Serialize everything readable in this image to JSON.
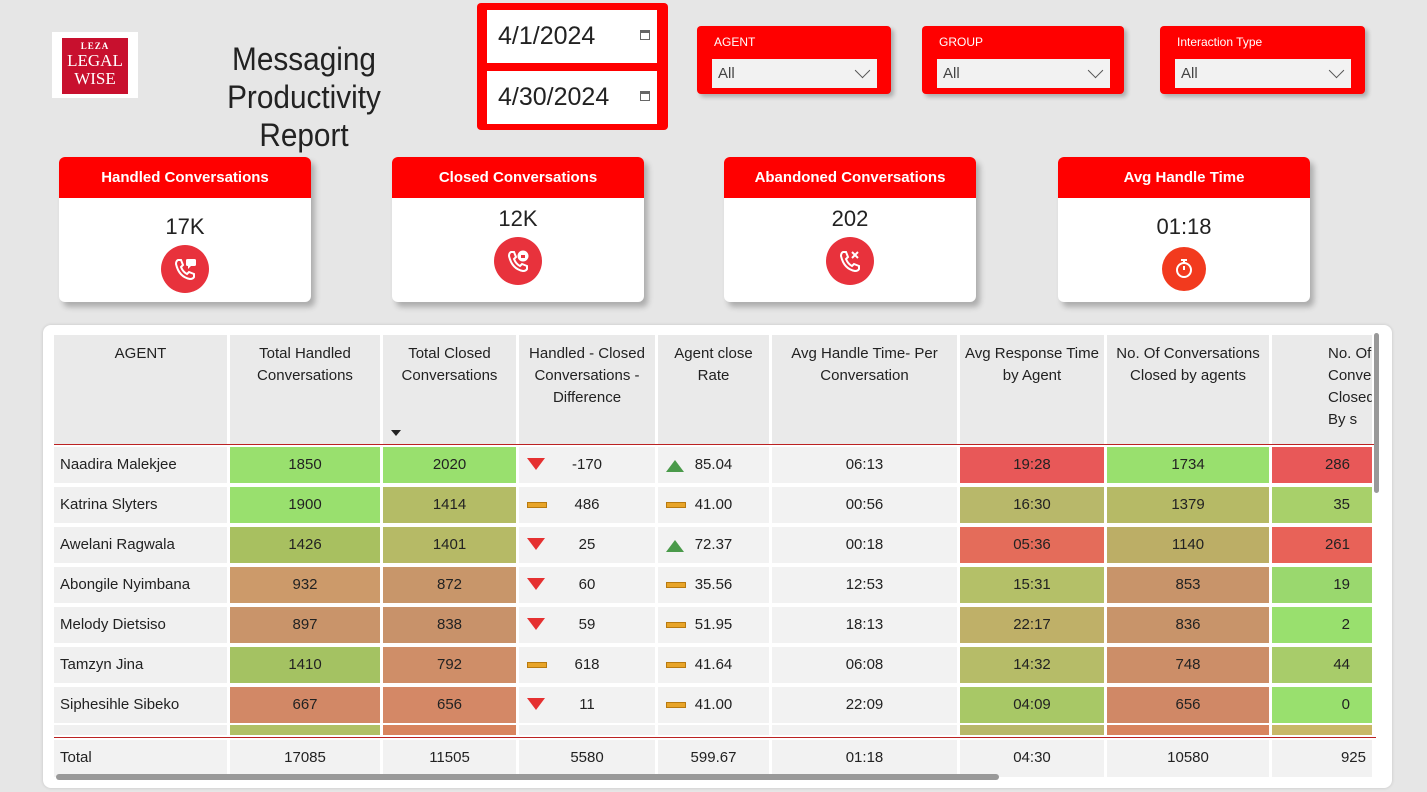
{
  "logo": {
    "line1": "LEZA",
    "line2": "LEGAL",
    "line3": "WISE"
  },
  "title": "Messaging Productivity Report",
  "date_range": {
    "start": "4/1/2024",
    "end": "4/30/2024"
  },
  "slicers": [
    {
      "label": "AGENT",
      "value": "All"
    },
    {
      "label": "GROUP",
      "value": "All"
    },
    {
      "label": "Interaction Type",
      "value": "All"
    }
  ],
  "kpis": [
    {
      "label": "Handled Conversations",
      "value": "17K",
      "icon": "phone-chat-icon"
    },
    {
      "label": "Closed Conversations",
      "value": "12K",
      "icon": "phone-lock-icon"
    },
    {
      "label": "Abandoned  Conversations",
      "value": "202",
      "icon": "phone-cancel-icon"
    },
    {
      "label": "Avg Handle Time",
      "value": "01:18",
      "icon": "stopwatch-icon"
    }
  ],
  "table": {
    "columns": [
      "AGENT",
      "Total Handled Conversations",
      "Total Closed Conversations",
      "Handled - Closed Conversations - Difference",
      "Agent close Rate",
      "Avg Handle Time- Per Conversation",
      "Avg Response Time by Agent",
      "No. Of Conversations Closed by agents",
      "No. Of Conversat Closed By s"
    ],
    "rows": [
      {
        "agent": "Naadira Malekjee",
        "handled": "1850",
        "closed": "2020",
        "diff": "-170",
        "diff_ind": "down",
        "rate": "85.04",
        "rate_ind": "up",
        "aht": "06:13",
        "art": "19:28",
        "by_agents": "1734",
        "by_s": "286"
      },
      {
        "agent": "Katrina Slyters",
        "handled": "1900",
        "closed": "1414",
        "diff": "486",
        "diff_ind": "flat",
        "rate": "41.00",
        "rate_ind": "flat",
        "aht": "00:56",
        "art": "16:30",
        "by_agents": "1379",
        "by_s": "35"
      },
      {
        "agent": "Awelani Ragwala",
        "handled": "1426",
        "closed": "1401",
        "diff": "25",
        "diff_ind": "down",
        "rate": "72.37",
        "rate_ind": "up",
        "aht": "00:18",
        "art": "05:36",
        "by_agents": "1140",
        "by_s": "261"
      },
      {
        "agent": "Abongile Nyimbana",
        "handled": "932",
        "closed": "872",
        "diff": "60",
        "diff_ind": "down",
        "rate": "35.56",
        "rate_ind": "flat",
        "aht": "12:53",
        "art": "15:31",
        "by_agents": "853",
        "by_s": "19"
      },
      {
        "agent": "Melody Dietsiso",
        "handled": "897",
        "closed": "838",
        "diff": "59",
        "diff_ind": "down",
        "rate": "51.95",
        "rate_ind": "flat",
        "aht": "18:13",
        "art": "22:17",
        "by_agents": "836",
        "by_s": "2"
      },
      {
        "agent": "Tamzyn Jina",
        "handled": "1410",
        "closed": "792",
        "diff": "618",
        "diff_ind": "flat",
        "rate": "41.64",
        "rate_ind": "flat",
        "aht": "06:08",
        "art": "14:32",
        "by_agents": "748",
        "by_s": "44"
      },
      {
        "agent": "Siphesihle Sibeko",
        "handled": "667",
        "closed": "656",
        "diff": "11",
        "diff_ind": "down",
        "rate": "41.00",
        "rate_ind": "flat",
        "aht": "22:09",
        "art": "04:09",
        "by_agents": "656",
        "by_s": "0"
      }
    ],
    "colors": {
      "handled": [
        "#99e06e",
        "#99e06e",
        "#a8c060",
        "#cc9a6a",
        "#c9946a",
        "#a4c262",
        "#d28866"
      ],
      "closed": [
        "#99e06e",
        "#b4bc66",
        "#b6ba66",
        "#c8966a",
        "#c8926a",
        "#cf8e68",
        "#d48866"
      ],
      "art": [
        "#e85858",
        "#b8b86a",
        "#e46c5a",
        "#b4c068",
        "#bfb068",
        "#b6bc68",
        "#a8c866"
      ],
      "by_agents": [
        "#99e06e",
        "#b6ba66",
        "#bcae66",
        "#c8946a",
        "#c8946a",
        "#cc8e68",
        "#d08866"
      ],
      "by_s": [
        "#e85858",
        "#a8d06a",
        "#e86258",
        "#9ad86e",
        "#99e06e",
        "#a8cc6a",
        "#99e06e"
      ]
    },
    "total": {
      "agent": "Total",
      "handled": "17085",
      "closed": "11505",
      "diff": "5580",
      "rate": "599.67",
      "aht": "01:18",
      "art": "04:30",
      "by_agents": "10580",
      "by_s": "925"
    }
  }
}
